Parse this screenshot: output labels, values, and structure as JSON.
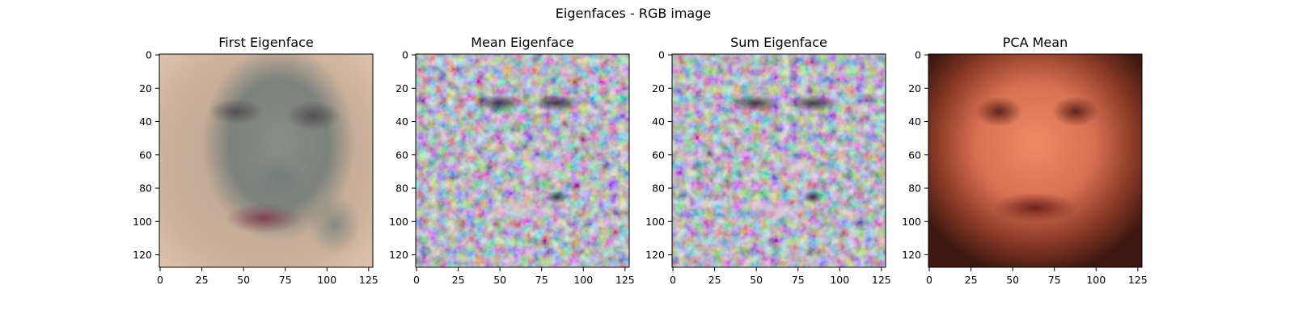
{
  "figure": {
    "suptitle": "Eigenfaces - RGB image"
  },
  "chart_data": [
    {
      "type": "image",
      "title": "First Eigenface",
      "xlabel": "",
      "ylabel": "",
      "xlim": [
        0,
        127
      ],
      "ylim": [
        127,
        0
      ],
      "xticks": [
        0,
        25,
        50,
        75,
        100,
        125
      ],
      "yticks": [
        0,
        20,
        40,
        60,
        80,
        100,
        120
      ],
      "image_size": [
        128,
        128
      ],
      "colors": {
        "background": "#c8ad98",
        "edge_light": "#e2c8b0",
        "face_tone": "#7d8580",
        "feature": "#5d4d50",
        "lips": "#8a4a58"
      }
    },
    {
      "type": "image",
      "title": "Mean Eigenface",
      "xlabel": "",
      "ylabel": "",
      "xlim": [
        0,
        127
      ],
      "ylim": [
        127,
        0
      ],
      "xticks": [
        0,
        25,
        50,
        75,
        100,
        125
      ],
      "yticks": [
        0,
        20,
        40,
        60,
        80,
        100,
        120
      ],
      "image_size": [
        128,
        128
      ],
      "colors": {
        "background": "#8f8a92",
        "noise_1": "#5e7d8f",
        "noise_2": "#8d6f88",
        "noise_3": "#6e8c72",
        "feature": "#3a3040"
      }
    },
    {
      "type": "image",
      "title": "Sum Eigenface",
      "xlabel": "",
      "ylabel": "",
      "xlim": [
        0,
        127
      ],
      "ylim": [
        127,
        0
      ],
      "xticks": [
        0,
        25,
        50,
        75,
        100,
        125
      ],
      "yticks": [
        0,
        20,
        40,
        60,
        80,
        100,
        120
      ],
      "image_size": [
        128,
        128
      ],
      "colors": {
        "background": "#8f8a92",
        "noise_1": "#5e7d8f",
        "noise_2": "#8d6f88",
        "noise_3": "#6e8c72",
        "feature": "#3a3040"
      }
    },
    {
      "type": "image",
      "title": "PCA Mean",
      "xlabel": "",
      "ylabel": "",
      "xlim": [
        0,
        127
      ],
      "ylim": [
        127,
        0
      ],
      "xticks": [
        0,
        25,
        50,
        75,
        100,
        125
      ],
      "yticks": [
        0,
        20,
        40,
        60,
        80,
        100,
        120
      ],
      "image_size": [
        128,
        128
      ],
      "colors": {
        "background": "#4a1e14",
        "skin": "#e07858",
        "feature": "#6a2a22",
        "lips": "#7a2a24"
      }
    }
  ]
}
